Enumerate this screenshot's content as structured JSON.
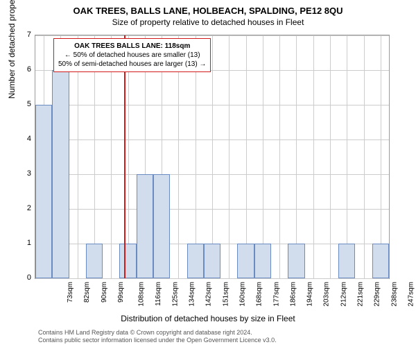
{
  "chart": {
    "type": "histogram",
    "title": "OAK TREES, BALLS LANE, HOLBEACH, SPALDING, PE12 8QU",
    "subtitle": "Size of property relative to detached houses in Fleet",
    "yaxis_title": "Number of detached properties",
    "xaxis_title": "Distribution of detached houses by size in Fleet",
    "ylim": [
      0,
      7
    ],
    "yticks": [
      0,
      1,
      2,
      3,
      4,
      5,
      6,
      7
    ],
    "xticks": [
      "73sqm",
      "82sqm",
      "90sqm",
      "99sqm",
      "108sqm",
      "116sqm",
      "125sqm",
      "134sqm",
      "142sqm",
      "151sqm",
      "160sqm",
      "168sqm",
      "177sqm",
      "186sqm",
      "194sqm",
      "203sqm",
      "212sqm",
      "221sqm",
      "229sqm",
      "238sqm",
      "247sqm"
    ],
    "bars": [
      5,
      6,
      0,
      1,
      0,
      1,
      3,
      3,
      0,
      1,
      1,
      0,
      1,
      1,
      0,
      1,
      0,
      0,
      1,
      0,
      1
    ],
    "bar_fill": "#d1dced",
    "bar_stroke": "#6a8bc1",
    "grid_color": "#cccccc",
    "background_color": "#ffffff",
    "reference_line": {
      "x_index_between": [
        5,
        6
      ],
      "frac": 0.25,
      "color": "#d11919"
    },
    "annotation": {
      "line1": "OAK TREES BALLS LANE: 118sqm",
      "line2": "← 50% of detached houses are smaller (13)",
      "line3": "50% of semi-detached houses are larger (13) →",
      "fontsize": 10
    },
    "title_fontsize": 13,
    "subtitle_fontsize": 12,
    "tick_fontsize": 11
  },
  "footer": {
    "line1": "Contains HM Land Registry data © Crown copyright and database right 2024.",
    "line2": "Contains public sector information licensed under the Open Government Licence v3.0."
  }
}
